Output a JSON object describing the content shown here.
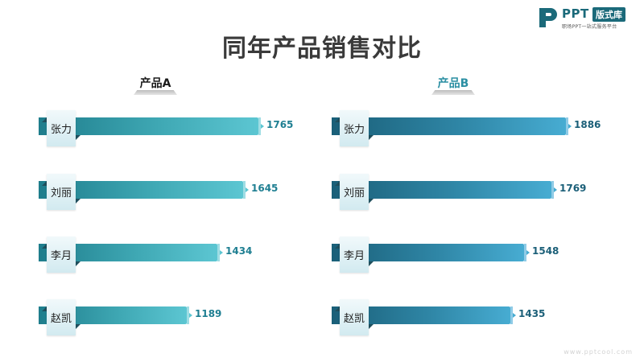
{
  "logo": {
    "brand": "PPT",
    "badge": "版式库",
    "tagline": "职场PPT一站式服务平台"
  },
  "title": "同年产品销售对比",
  "chart_data": [
    {
      "type": "bar",
      "title": "产品A",
      "categories": [
        "张力",
        "刘丽",
        "李月",
        "赵凯"
      ],
      "values": [
        1765,
        1645,
        1434,
        1189
      ],
      "value_labels": [
        "1765",
        "1645",
        "1434",
        "1189"
      ],
      "colors": [
        "#1e7d8c",
        "#5cc6d2"
      ],
      "label_position": "end",
      "xlim": [
        0,
        2000
      ]
    },
    {
      "type": "bar",
      "title": "产品B",
      "categories": [
        "张力",
        "刘丽",
        "李月",
        "赵凯"
      ],
      "values": [
        1886,
        1769,
        1548,
        1435
      ],
      "value_labels": [
        "1886",
        "1769",
        "1548",
        "1435"
      ],
      "colors": [
        "#1a5f78",
        "#47acd2"
      ],
      "label_position": "end",
      "xlim": [
        0,
        2000
      ]
    }
  ],
  "watermark": "www.pptcool.com"
}
